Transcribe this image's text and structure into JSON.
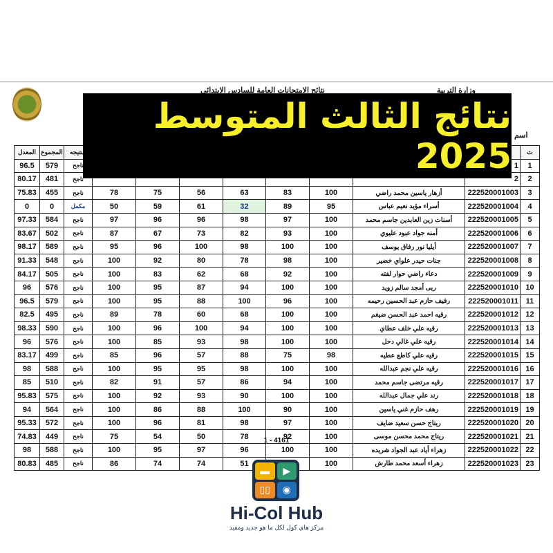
{
  "header": {
    "ministry": "وزارة التربية",
    "title": "نتائج الامتحانات العامة للسادس الابتدائي",
    "name_label": "اسم"
  },
  "banner": {
    "text": "نتائج الثالث المتوسط 2025",
    "text_color": "#f7ef2a"
  },
  "table": {
    "headers": [
      "المعدل",
      "المجموع",
      "النتيجه",
      "",
      "",
      "",
      "",
      "",
      "",
      "",
      "",
      "ت"
    ],
    "rows": [
      [
        "96.5",
        "579",
        "ناجح",
        "",
        "",
        "",
        "",
        "",
        "",
        "",
        "1",
        "1"
      ],
      [
        "80.17",
        "481",
        "ناجح",
        "",
        "",
        "",
        "",
        "",
        "",
        "",
        "2",
        "2"
      ],
      [
        "75.83",
        "455",
        "ناجح",
        "78",
        "75",
        "56",
        "63",
        "83",
        "100",
        "أزهار ياسين محمد راضي",
        "222520001003",
        "3"
      ],
      [
        "0",
        "0",
        "مكمل",
        "50",
        "59",
        "61",
        "32",
        "89",
        "95",
        "أسراء مؤيد نعيم عباس",
        "222520001004",
        "4"
      ],
      [
        "97.33",
        "584",
        "ناجح",
        "97",
        "96",
        "96",
        "98",
        "97",
        "100",
        "أسنات زين العابدين جاسم محمد",
        "222520001005",
        "5"
      ],
      [
        "83.67",
        "502",
        "ناجح",
        "87",
        "67",
        "73",
        "82",
        "93",
        "100",
        "أمنه جواد عبود عليوي",
        "222520001006",
        "6"
      ],
      [
        "98.17",
        "589",
        "ناجح",
        "95",
        "96",
        "100",
        "98",
        "100",
        "100",
        "أيليا نور رفاق يوسف",
        "222520001007",
        "7"
      ],
      [
        "91.33",
        "548",
        "ناجح",
        "100",
        "92",
        "80",
        "78",
        "98",
        "100",
        "جنات حيدر علواي خضير",
        "222520001008",
        "8"
      ],
      [
        "84.17",
        "505",
        "ناجح",
        "100",
        "83",
        "62",
        "68",
        "92",
        "100",
        "دعاء راضي حوار لفته",
        "222520001009",
        "9"
      ],
      [
        "96",
        "576",
        "ناجح",
        "100",
        "95",
        "87",
        "94",
        "100",
        "100",
        "ربى أمجد سالم زويد",
        "222520001010",
        "10"
      ],
      [
        "96.5",
        "579",
        "ناجح",
        "100",
        "95",
        "88",
        "100",
        "96",
        "100",
        "رفيف حازم عبد الحسين رحيمه",
        "222520001011",
        "11"
      ],
      [
        "82.5",
        "495",
        "ناجح",
        "89",
        "78",
        "60",
        "68",
        "100",
        "100",
        "رقيه احمد عبد الحسن ضيغم",
        "222520001012",
        "12"
      ],
      [
        "98.33",
        "590",
        "ناجح",
        "100",
        "96",
        "100",
        "94",
        "100",
        "100",
        "رقيه علي خلف عطاي",
        "222520001013",
        "13"
      ],
      [
        "96",
        "576",
        "ناجح",
        "100",
        "85",
        "93",
        "98",
        "100",
        "100",
        "رقيه علي غالي دحل",
        "222520001014",
        "14"
      ],
      [
        "83.17",
        "499",
        "ناجح",
        "85",
        "96",
        "57",
        "88",
        "75",
        "98",
        "رقيه علي كاطع عطيه",
        "222520001015",
        "15"
      ],
      [
        "98",
        "588",
        "ناجح",
        "100",
        "95",
        "95",
        "98",
        "100",
        "100",
        "رقيه علي نجم عبدالله",
        "222520001016",
        "16"
      ],
      [
        "85",
        "510",
        "ناجح",
        "82",
        "91",
        "57",
        "86",
        "94",
        "100",
        "رقيه مرتضى جاسم محمد",
        "222520001017",
        "17"
      ],
      [
        "95.83",
        "575",
        "ناجح",
        "100",
        "92",
        "93",
        "90",
        "100",
        "100",
        "رند علي جمال عبدالله",
        "222520001018",
        "18"
      ],
      [
        "94",
        "564",
        "ناجح",
        "100",
        "86",
        "88",
        "100",
        "90",
        "100",
        "رهف حازم غني ياسين",
        "222520001019",
        "19"
      ],
      [
        "95.33",
        "572",
        "ناجح",
        "100",
        "96",
        "81",
        "98",
        "97",
        "100",
        "ريتاج حسن سعيد ضايف",
        "222520001020",
        "20"
      ],
      [
        "74.83",
        "449",
        "ناجح",
        "75",
        "54",
        "50",
        "78",
        "92",
        "100",
        "ريتاج محمد محسن موسى",
        "222520001021",
        "21"
      ],
      [
        "98",
        "588",
        "ناجح",
        "100",
        "95",
        "97",
        "96",
        "100",
        "100",
        "زهراء أياد عبد الجواد شريده",
        "222520001022",
        "22"
      ],
      [
        "80.83",
        "485",
        "ناجح",
        "86",
        "74",
        "74",
        "51",
        "100",
        "100",
        "زهراء أسعد محمد طارش",
        "222520001023",
        "23"
      ]
    ]
  },
  "page_number": "1 - 4161",
  "brand": {
    "name": "Hi-Col Hub",
    "tagline": "مركز هاي كول لكل ما هو جديد ومفيد",
    "colors": [
      "#f5b301",
      "#2e9a6e",
      "#f08a24",
      "#1f6fb8"
    ]
  }
}
